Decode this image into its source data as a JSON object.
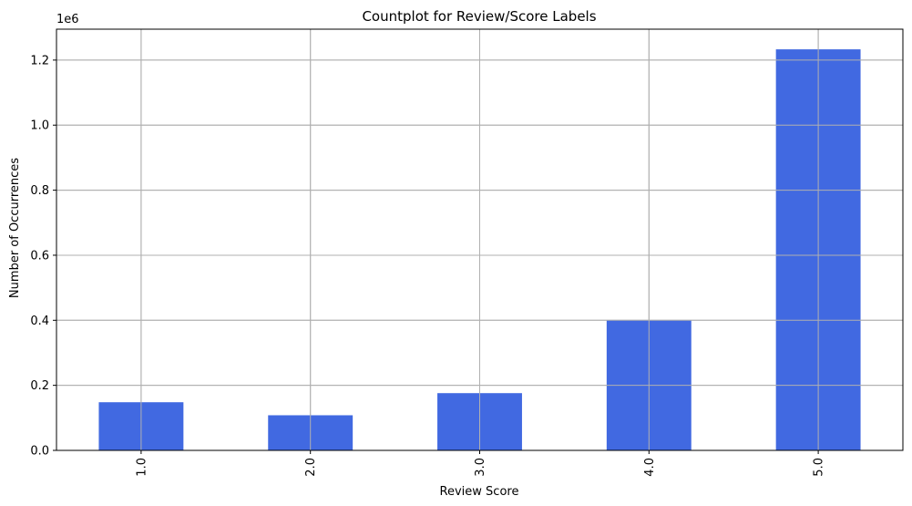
{
  "chart_data": {
    "type": "bar",
    "title": "Countplot for Review/Score Labels",
    "xlabel": "Review Score",
    "ylabel": "Number of Occurrences",
    "categories": [
      "1.0",
      "2.0",
      "3.0",
      "4.0",
      "5.0"
    ],
    "values": [
      148000,
      108000,
      176000,
      400000,
      1233000
    ],
    "ylim": [
      0,
      1295000
    ],
    "yticks": [
      0,
      200000,
      400000,
      600000,
      800000,
      1000000,
      1200000
    ],
    "ytick_labels": [
      "0.0",
      "0.2",
      "0.4",
      "0.6",
      "0.8",
      "1.0",
      "1.2"
    ],
    "y_offset_label": "1e6",
    "bar_color": "#4169e1",
    "grid": true,
    "xtick_rotation": "vertical"
  }
}
